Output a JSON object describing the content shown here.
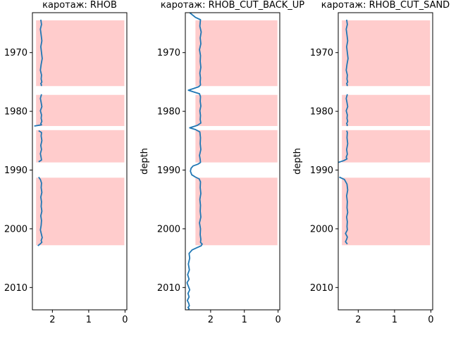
{
  "chart_data": [
    {
      "type": "line",
      "title": "каротаж: RHOB",
      "ylabel": "",
      "xlim": [
        2.55,
        -0.05
      ],
      "ylim": [
        2013.8,
        1963.2
      ],
      "xticks": [
        2,
        1,
        0
      ],
      "xtick_labels": [
        "2",
        "1",
        "0"
      ],
      "yticks": [
        1970,
        1980,
        1990,
        2000,
        2010
      ],
      "ytick_labels": [
        "1970",
        "1980",
        "1990",
        "2000",
        "2010"
      ],
      "zones": [
        [
          1964.5,
          1975.7
        ],
        [
          1977.2,
          1982.5
        ],
        [
          1983.2,
          1988.7
        ],
        [
          1991.3,
          2002.8
        ]
      ],
      "series": [
        {
          "x": [
            2.32,
            2.3,
            2.33,
            2.31,
            2.29,
            2.32,
            2.3,
            2.28,
            2.31,
            2.33,
            2.3,
            2.31,
            2.29,
            2.32,
            2.3,
            2.31,
            null,
            2.3,
            2.33,
            2.31,
            2.29,
            2.33,
            2.3,
            2.31,
            2.29,
            2.32,
            2.3,
            2.5,
            null,
            2.38,
            2.3,
            2.31,
            2.29,
            2.32,
            2.3,
            2.33,
            2.31,
            2.3,
            2.38,
            null,
            2.38,
            2.33,
            2.3,
            2.31,
            2.29,
            2.32,
            2.3,
            2.31,
            2.29,
            2.32,
            2.3,
            2.31,
            2.33,
            2.3,
            2.28,
            2.31,
            2.29,
            2.34,
            2.4
          ],
          "y": [
            1964.4,
            1965.2,
            1966.0,
            1967.0,
            1968.0,
            1969.0,
            1970.0,
            1971.0,
            1972.0,
            1973.0,
            1973.8,
            1974.5,
            1975.0,
            1975.3,
            1975.5,
            1975.7,
            null,
            1977.1,
            1977.8,
            1978.5,
            1979.2,
            1979.9,
            1980.6,
            1981.2,
            1981.7,
            1982.1,
            1982.3,
            1982.5,
            null,
            1983.3,
            1983.6,
            1984.2,
            1985.0,
            1985.8,
            1986.5,
            1987.2,
            1987.9,
            1988.3,
            1988.6,
            null,
            1991.2,
            1991.6,
            1992.2,
            1993.0,
            1993.8,
            1994.6,
            1995.4,
            1996.2,
            1997.0,
            1997.8,
            1998.6,
            1999.4,
            2000.2,
            2001.0,
            2001.5,
            2002.0,
            2002.3,
            2002.6,
            2002.9
          ]
        }
      ]
    },
    {
      "type": "line",
      "title": "каротаж: RHOB_CUT_BACK_UP",
      "ylabel": "depth",
      "xlim": [
        2.75,
        -0.05
      ],
      "ylim": [
        2013.8,
        1963.2
      ],
      "xticks": [
        2,
        1,
        0
      ],
      "xtick_labels": [
        "2",
        "1",
        "0"
      ],
      "yticks": [
        1970,
        1980,
        1990,
        2000,
        2010
      ],
      "ytick_labels": [
        "1970",
        "1980",
        "1990",
        "2000",
        "2010"
      ],
      "zones": [
        [
          1964.5,
          1975.7
        ],
        [
          1977.2,
          1982.5
        ],
        [
          1983.2,
          1988.7
        ],
        [
          1991.3,
          2002.8
        ]
      ],
      "series": [
        {
          "x": [
            2.62,
            2.45,
            2.3,
            2.32,
            2.28,
            2.31,
            2.29,
            2.33,
            2.3,
            2.31,
            2.29,
            2.32,
            2.3,
            2.31,
            2.3,
            2.35,
            2.5,
            2.66,
            2.5,
            2.33,
            2.3,
            2.31,
            2.29,
            2.32,
            2.3,
            2.31,
            2.29,
            2.4,
            2.62,
            2.45,
            2.32,
            2.3,
            2.31,
            2.29,
            2.33,
            2.31,
            2.3,
            2.38,
            2.52,
            2.58,
            2.6,
            2.56,
            2.45,
            2.34,
            2.3,
            2.31,
            2.29,
            2.32,
            2.3,
            2.31,
            2.29,
            2.33,
            2.3,
            2.31,
            2.29,
            2.3,
            2.25,
            2.28,
            2.4,
            2.55,
            2.64,
            2.62,
            2.66,
            2.63,
            2.68,
            2.64,
            2.7,
            2.66,
            2.62,
            2.67,
            2.64,
            2.69,
            2.65,
            2.63,
            2.67,
            2.64,
            2.66
          ],
          "y": [
            1963.2,
            1964.0,
            1964.4,
            1965.5,
            1966.5,
            1967.5,
            1968.5,
            1969.5,
            1970.5,
            1971.5,
            1972.5,
            1973.5,
            1974.3,
            1975.0,
            1975.5,
            1975.8,
            1976.1,
            1976.4,
            1976.7,
            1977.0,
            1977.5,
            1978.3,
            1979.1,
            1979.9,
            1980.7,
            1981.4,
            1982.0,
            1982.4,
            1982.8,
            1983.1,
            1983.5,
            1984.5,
            1985.5,
            1986.5,
            1987.5,
            1988.2,
            1988.7,
            1989.0,
            1989.3,
            1989.7,
            1990.2,
            1990.8,
            1991.2,
            1991.5,
            1992.0,
            1993.0,
            1994.0,
            1995.0,
            1996.0,
            1997.0,
            1998.0,
            1999.0,
            2000.0,
            2001.0,
            2001.8,
            2002.3,
            2002.6,
            2002.9,
            2003.2,
            2003.6,
            2004.2,
            2005.0,
            2006.0,
            2007.0,
            2007.8,
            2008.6,
            2009.2,
            2009.8,
            2010.4,
            2011.0,
            2011.6,
            2012.2,
            2012.7,
            2013.1,
            2013.4,
            2013.6,
            2013.8
          ]
        }
      ]
    },
    {
      "type": "line",
      "title": "каротаж: RHOB_CUT_SAND",
      "ylabel": "depth",
      "xlim": [
        2.55,
        -0.05
      ],
      "ylim": [
        2013.8,
        1963.2
      ],
      "xticks": [
        2,
        1,
        0
      ],
      "xtick_labels": [
        "2",
        "1",
        "0"
      ],
      "yticks": [
        1970,
        1980,
        1990,
        2000,
        2010
      ],
      "ytick_labels": [
        "1970",
        "1980",
        "1990",
        "2000",
        "2010"
      ],
      "zones": [
        [
          1964.5,
          1975.7
        ],
        [
          1977.2,
          1982.5
        ],
        [
          1983.2,
          1988.7
        ],
        [
          1991.3,
          2002.8
        ]
      ],
      "series": [
        {
          "x": [
            2.32,
            2.3,
            2.33,
            2.31,
            2.29,
            2.32,
            2.3,
            2.28,
            2.31,
            2.33,
            2.3,
            2.31,
            2.29,
            2.32,
            2.3,
            2.31,
            null,
            2.3,
            2.33,
            2.31,
            2.29,
            2.33,
            2.3,
            2.31,
            2.29,
            2.32,
            2.3,
            2.31,
            null,
            2.32,
            2.3,
            2.31,
            2.29,
            2.32,
            2.3,
            2.33,
            2.31,
            2.4,
            2.55,
            null,
            2.52,
            2.38,
            2.31,
            2.29,
            2.32,
            2.3,
            2.31,
            2.29,
            2.32,
            2.3,
            2.31,
            2.3,
            2.35,
            2.3,
            2.32,
            2.35,
            2.3
          ],
          "y": [
            1964.4,
            1965.2,
            1966.0,
            1967.0,
            1968.0,
            1969.0,
            1970.0,
            1971.0,
            1972.0,
            1973.0,
            1973.8,
            1974.5,
            1975.0,
            1975.3,
            1975.5,
            1975.7,
            null,
            1977.1,
            1977.8,
            1978.5,
            1979.2,
            1979.9,
            1980.6,
            1981.2,
            1981.7,
            1982.1,
            1982.3,
            1982.5,
            null,
            1983.3,
            1983.6,
            1984.5,
            1985.5,
            1986.5,
            1987.3,
            1987.8,
            1988.1,
            1988.4,
            1988.7,
            null,
            1991.2,
            1991.6,
            1992.4,
            1993.4,
            1994.4,
            1995.4,
            1996.4,
            1997.2,
            1998.0,
            1998.8,
            1999.6,
            2000.2,
            2000.8,
            2001.4,
            2001.8,
            2002.2,
            2002.6
          ]
        }
      ]
    }
  ],
  "colors": {
    "zone_fill": "#ffcccc",
    "curve": "#1f77b4"
  }
}
